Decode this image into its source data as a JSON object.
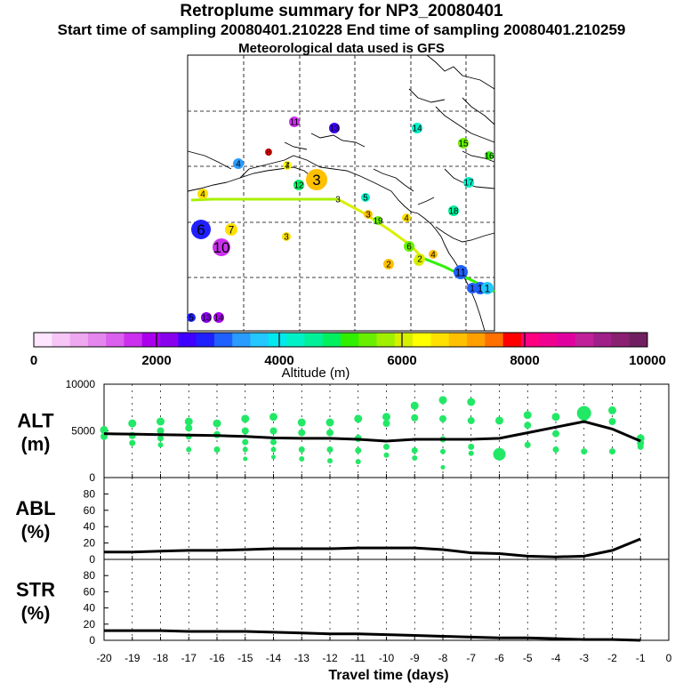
{
  "header": {
    "title": "Retroplume summary for NP3_20080401",
    "sampling": "Start time of sampling 20080401.210228     End time of sampling 20080401.210259",
    "met": "Meteorological data used is GFS"
  },
  "colorbar": {
    "label": "Altitude (m)",
    "ticks": [
      "0",
      "2000",
      "4000",
      "6000",
      "8000",
      "10000"
    ],
    "colors": [
      "#ffe6ff",
      "#f6c6f6",
      "#eea8f0",
      "#e486ee",
      "#da60ee",
      "#cc30ee",
      "#aa00ee",
      "#8800ee",
      "#4000ff",
      "#2020ff",
      "#2060ff",
      "#2a9cff",
      "#22c8ff",
      "#00e8f0",
      "#00f0c8",
      "#00f09a",
      "#00f060",
      "#30f000",
      "#68f000",
      "#a0f000",
      "#d8f000",
      "#ffff00",
      "#ffe000",
      "#ffc000",
      "#ffa000",
      "#ff7000",
      "#ff0000",
      "#ff0080",
      "#f00090",
      "#e000a0",
      "#c0209a",
      "#a0208a",
      "#8a2070",
      "#702060"
    ]
  },
  "map": {
    "points": [
      {
        "label": "1",
        "value": 3000
      },
      {
        "label": "1",
        "value": 3200
      },
      {
        "label": "1",
        "value": 3800
      },
      {
        "label": "2",
        "value": 5900
      },
      {
        "label": "2",
        "value": 6900
      },
      {
        "label": "2",
        "value": 6000
      },
      {
        "label": "3",
        "value": 7000
      },
      {
        "label": "3",
        "value": 3300
      },
      {
        "label": "3",
        "value": 6900
      },
      {
        "label": "3",
        "value": 6600
      },
      {
        "label": "4",
        "value": 6600
      },
      {
        "label": "4",
        "value": 3500
      },
      {
        "label": "4",
        "value": 6200
      },
      {
        "label": "5",
        "value": 4200
      },
      {
        "label": "6",
        "value": 2700
      },
      {
        "label": "6",
        "value": 5500
      },
      {
        "label": "7",
        "value": 6700
      },
      {
        "label": "7",
        "value": 2800
      },
      {
        "label": "8",
        "value": 7800
      },
      {
        "label": "10",
        "value": 1500
      },
      {
        "label": "11",
        "value": 3200
      },
      {
        "label": "11",
        "value": 1600
      },
      {
        "label": "12",
        "value": 4800
      },
      {
        "label": "13",
        "value": 2600
      },
      {
        "label": "14",
        "value": 4200
      },
      {
        "label": "15",
        "value": 5500
      },
      {
        "label": "16",
        "value": 5100
      },
      {
        "label": "17",
        "value": 4400
      },
      {
        "label": "18",
        "value": 4700
      },
      {
        "label": "19",
        "value": 5400
      },
      {
        "label": "5",
        "value": 2700
      },
      {
        "label": "13",
        "value": 2300
      },
      {
        "label": "14",
        "value": 1800
      },
      {
        "label": "4",
        "value": 7000
      },
      {
        "label": "4",
        "value": 6500
      }
    ],
    "plume_labels": [
      "1",
      "2",
      "3",
      "4"
    ]
  },
  "chart_data": [
    {
      "type": "scatter",
      "panel": "ALT",
      "ylabel": "ALT\n(m)",
      "ylim": [
        0,
        10000
      ],
      "yticks": [
        0,
        5000,
        10000
      ],
      "xlim": [
        -20,
        0
      ],
      "median_line": {
        "x": [
          -20,
          -19,
          -18,
          -17,
          -16,
          -15,
          -14,
          -13,
          -12,
          -11,
          -10,
          -9,
          -8,
          -7,
          -6,
          -5,
          -4,
          -3,
          -2,
          -1
        ],
        "y": [
          4700,
          4650,
          4600,
          4550,
          4500,
          4400,
          4250,
          4200,
          4200,
          4100,
          3900,
          4100,
          4100,
          4100,
          4200,
          4800,
          5400,
          6000,
          5200,
          3900
        ]
      },
      "scatter": [
        {
          "x": -20,
          "y": [
            5100,
            4400
          ]
        },
        {
          "x": -19,
          "y": [
            5800,
            4500,
            3700
          ]
        },
        {
          "x": -18,
          "y": [
            6000,
            5000,
            4200,
            3500
          ]
        },
        {
          "x": -17,
          "y": [
            6000,
            5300,
            4400,
            3000
          ]
        },
        {
          "x": -16,
          "y": [
            5800,
            4600,
            3000
          ]
        },
        {
          "x": -15,
          "y": [
            6300,
            5000,
            3800,
            3000,
            2000
          ]
        },
        {
          "x": -14,
          "y": [
            6500,
            5000,
            3800,
            3000,
            2200
          ]
        },
        {
          "x": -13,
          "y": [
            5900,
            4800,
            3000,
            2000
          ]
        },
        {
          "x": -12,
          "y": [
            5900,
            4800,
            3000,
            1800
          ]
        },
        {
          "x": -11,
          "y": [
            6300,
            4200,
            2900,
            1700
          ]
        },
        {
          "x": -10,
          "y": [
            6500,
            5800,
            3300,
            2400
          ]
        },
        {
          "x": -9,
          "y": [
            7700,
            6400,
            2900,
            2100
          ]
        },
        {
          "x": -8,
          "y": [
            8300,
            6300,
            4100,
            2800,
            1100
          ]
        },
        {
          "x": -7,
          "y": [
            8100,
            6100,
            3300,
            2600
          ]
        },
        {
          "x": -6,
          "y": [
            6100,
            2500
          ]
        },
        {
          "x": -5,
          "y": [
            6700,
            5600,
            3500
          ]
        },
        {
          "x": -4,
          "y": [
            6500,
            4700,
            3000
          ]
        },
        {
          "x": -3,
          "y": [
            6900,
            6400,
            2800
          ]
        },
        {
          "x": -2,
          "y": [
            7200,
            6000,
            2800
          ]
        },
        {
          "x": -1,
          "y": [
            4200,
            3700,
            3300
          ]
        }
      ]
    },
    {
      "type": "line",
      "panel": "ABL",
      "ylabel": "ABL\n(%)",
      "ylim": [
        0,
        100
      ],
      "yticks": [
        0,
        20,
        40,
        60,
        80
      ],
      "x": [
        -20,
        -19,
        -18,
        -17,
        -16,
        -15,
        -14,
        -13,
        -12,
        -11,
        -10,
        -9,
        -8,
        -7,
        -6,
        -5,
        -4,
        -3,
        -2,
        -1
      ],
      "y": [
        9,
        9,
        10,
        11,
        11,
        12,
        13,
        13,
        13,
        14,
        14,
        14,
        12,
        8,
        7,
        4,
        3,
        4,
        11,
        25
      ]
    },
    {
      "type": "line",
      "panel": "STR",
      "ylabel": "STR\n(%)",
      "ylim": [
        0,
        100
      ],
      "yticks": [
        0,
        20,
        40,
        60,
        80
      ],
      "xlabel": "Travel time (days)",
      "xticks": [
        -20,
        -19,
        -18,
        -17,
        -16,
        -15,
        -14,
        -13,
        -12,
        -11,
        -10,
        -9,
        -8,
        -7,
        -6,
        -5,
        -4,
        -3,
        -2,
        -1,
        0
      ],
      "x": [
        -20,
        -19,
        -18,
        -17,
        -16,
        -15,
        -14,
        -13,
        -12,
        -11,
        -10,
        -9,
        -8,
        -7,
        -6,
        -5,
        -4,
        -3,
        -2,
        -1
      ],
      "y": [
        12,
        12,
        12,
        11,
        11,
        11,
        10,
        9,
        8,
        8,
        7,
        6,
        5,
        4,
        3,
        3,
        2,
        1,
        1,
        0
      ]
    }
  ]
}
